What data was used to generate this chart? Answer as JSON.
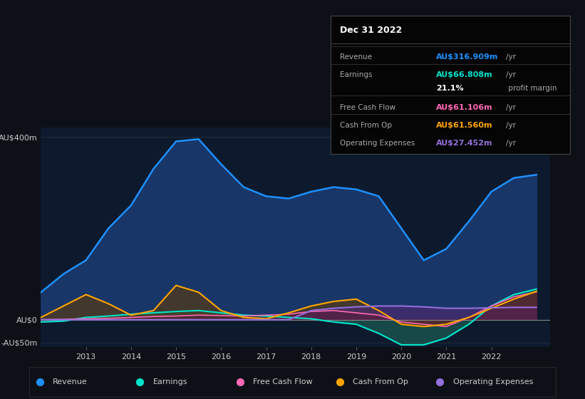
{
  "background_color": "#0d1117",
  "plot_bg_color": "#0d1a2e",
  "years": [
    2012.0,
    2012.5,
    2013.0,
    2013.5,
    2014.0,
    2014.5,
    2015.0,
    2015.5,
    2016.0,
    2016.5,
    2017.0,
    2017.5,
    2018.0,
    2018.5,
    2019.0,
    2019.5,
    2020.0,
    2020.5,
    2021.0,
    2021.5,
    2022.0,
    2022.5,
    2023.0
  ],
  "revenue": [
    60,
    100,
    130,
    200,
    250,
    330,
    390,
    395,
    340,
    290,
    270,
    265,
    280,
    290,
    285,
    270,
    200,
    130,
    155,
    215,
    280,
    310,
    317
  ],
  "earnings": [
    -5,
    -3,
    5,
    8,
    12,
    15,
    18,
    20,
    15,
    10,
    8,
    5,
    2,
    -5,
    -10,
    -30,
    -55,
    -55,
    -40,
    -10,
    30,
    55,
    67
  ],
  "free_cash_flow": [
    0,
    1,
    2,
    3,
    5,
    7,
    8,
    10,
    9,
    8,
    10,
    12,
    18,
    20,
    15,
    10,
    -5,
    -10,
    -15,
    5,
    30,
    50,
    61
  ],
  "cash_from_op": [
    5,
    30,
    55,
    35,
    10,
    20,
    75,
    60,
    20,
    5,
    2,
    15,
    30,
    40,
    45,
    20,
    -10,
    -15,
    -10,
    5,
    25,
    45,
    62
  ],
  "operating_expenses": [
    0,
    0,
    0,
    0,
    0,
    0,
    0,
    0,
    0,
    0,
    0,
    0,
    20,
    25,
    28,
    30,
    30,
    28,
    25,
    25,
    26,
    27,
    27
  ],
  "colors": {
    "revenue": "#1e90ff",
    "earnings": "#00e5cc",
    "free_cash_flow": "#ff69b4",
    "cash_from_op": "#ffa500",
    "operating_expenses": "#9370db"
  },
  "fill_colors": {
    "revenue": "#1a3a6e",
    "earnings": "#1a5a50",
    "free_cash_flow": "#5a1a3a",
    "cash_from_op": "#5a3a10",
    "operating_expenses": "#4a2a6e"
  },
  "ylim": [
    -60,
    420
  ],
  "ytick_labels": [
    "-AU$50m",
    "AU$0",
    "AU$400m"
  ],
  "ytick_values": [
    -50,
    0,
    400
  ],
  "xtick_years": [
    2013,
    2014,
    2015,
    2016,
    2017,
    2018,
    2019,
    2020,
    2021,
    2022
  ],
  "info_box": {
    "title": "Dec 31 2022",
    "rows": [
      {
        "label": "Revenue",
        "value": "AU$316.909m",
        "unit": "/yr",
        "color": "#1e90ff"
      },
      {
        "label": "Earnings",
        "value": "AU$66.808m",
        "unit": "/yr",
        "color": "#00e5cc"
      },
      {
        "label": "",
        "value": "21.1%",
        "unit": " profit margin",
        "color": "#ffffff"
      },
      {
        "label": "Free Cash Flow",
        "value": "AU$61.106m",
        "unit": "/yr",
        "color": "#ff69b4"
      },
      {
        "label": "Cash From Op",
        "value": "AU$61.560m",
        "unit": "/yr",
        "color": "#ffa500"
      },
      {
        "label": "Operating Expenses",
        "value": "AU$27.452m",
        "unit": "/yr",
        "color": "#9370db"
      }
    ]
  },
  "legend": [
    {
      "label": "Revenue",
      "color": "#1e90ff"
    },
    {
      "label": "Earnings",
      "color": "#00e5cc"
    },
    {
      "label": "Free Cash Flow",
      "color": "#ff69b4"
    },
    {
      "label": "Cash From Op",
      "color": "#ffa500"
    },
    {
      "label": "Operating Expenses",
      "color": "#9370db"
    }
  ]
}
